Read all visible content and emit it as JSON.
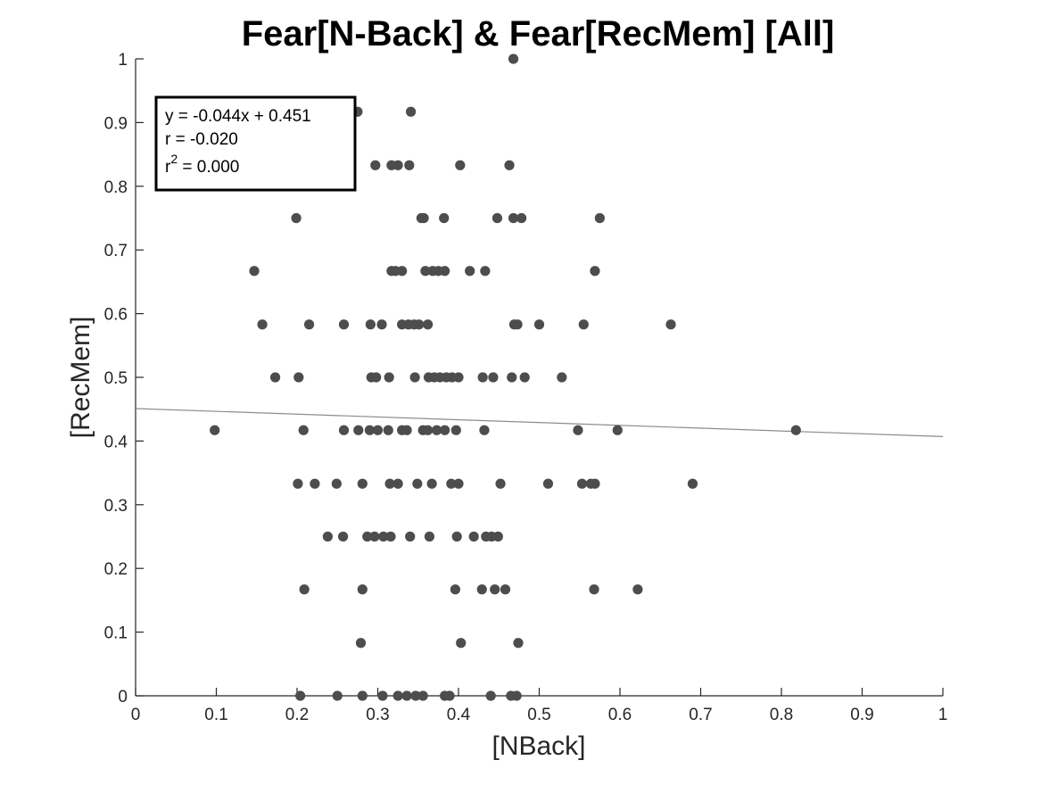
{
  "chart_data": {
    "type": "scatter",
    "title": "Fear[N-Back] & Fear[RecMem] [All]",
    "xlabel": "[NBack]",
    "ylabel": "[RecMem]",
    "xlim": [
      0,
      1
    ],
    "ylim": [
      0,
      1
    ],
    "x_ticks": [
      "0",
      "0.1",
      "0.2",
      "0.3",
      "0.4",
      "0.5",
      "0.6",
      "0.7",
      "0.8",
      "0.9",
      "1"
    ],
    "y_ticks": [
      "0",
      "0.1",
      "0.2",
      "0.3",
      "0.4",
      "0.5",
      "0.6",
      "0.7",
      "0.8",
      "0.9",
      "1"
    ],
    "grid": false,
    "stats_box": {
      "equation": "y = -0.044x + 0.451",
      "r_line": "r = -0.020",
      "r2_prefix": "r",
      "r2_superscript": "2",
      "r2_value": " = 0.000",
      "placement": "top-left"
    },
    "fit_line": {
      "slope": -0.044,
      "intercept": 0.451
    },
    "point_color": "#4d4d4d",
    "fit_color": "#8c8c8c",
    "points": [
      [
        0.468,
        1.0
      ],
      [
        0.242,
        0.917
      ],
      [
        0.275,
        0.917
      ],
      [
        0.341,
        0.917
      ],
      [
        0.297,
        0.833
      ],
      [
        0.317,
        0.833
      ],
      [
        0.325,
        0.833
      ],
      [
        0.339,
        0.833
      ],
      [
        0.402,
        0.833
      ],
      [
        0.463,
        0.833
      ],
      [
        0.199,
        0.75
      ],
      [
        0.354,
        0.75
      ],
      [
        0.357,
        0.75
      ],
      [
        0.382,
        0.75
      ],
      [
        0.448,
        0.75
      ],
      [
        0.468,
        0.75
      ],
      [
        0.478,
        0.75
      ],
      [
        0.575,
        0.75
      ],
      [
        0.147,
        0.667
      ],
      [
        0.317,
        0.667
      ],
      [
        0.322,
        0.667
      ],
      [
        0.33,
        0.667
      ],
      [
        0.359,
        0.667
      ],
      [
        0.368,
        0.667
      ],
      [
        0.375,
        0.667
      ],
      [
        0.383,
        0.667
      ],
      [
        0.414,
        0.667
      ],
      [
        0.433,
        0.667
      ],
      [
        0.569,
        0.667
      ],
      [
        0.157,
        0.583
      ],
      [
        0.215,
        0.583
      ],
      [
        0.258,
        0.583
      ],
      [
        0.291,
        0.583
      ],
      [
        0.305,
        0.583
      ],
      [
        0.33,
        0.583
      ],
      [
        0.338,
        0.583
      ],
      [
        0.345,
        0.583
      ],
      [
        0.351,
        0.583
      ],
      [
        0.362,
        0.583
      ],
      [
        0.469,
        0.583
      ],
      [
        0.473,
        0.583
      ],
      [
        0.5,
        0.583
      ],
      [
        0.555,
        0.583
      ],
      [
        0.663,
        0.583
      ],
      [
        0.173,
        0.5
      ],
      [
        0.202,
        0.5
      ],
      [
        0.292,
        0.5
      ],
      [
        0.298,
        0.5
      ],
      [
        0.314,
        0.5
      ],
      [
        0.346,
        0.5
      ],
      [
        0.363,
        0.5
      ],
      [
        0.37,
        0.5
      ],
      [
        0.377,
        0.5
      ],
      [
        0.385,
        0.5
      ],
      [
        0.392,
        0.5
      ],
      [
        0.4,
        0.5
      ],
      [
        0.43,
        0.5
      ],
      [
        0.443,
        0.5
      ],
      [
        0.466,
        0.5
      ],
      [
        0.482,
        0.5
      ],
      [
        0.528,
        0.5
      ],
      [
        0.098,
        0.417
      ],
      [
        0.208,
        0.417
      ],
      [
        0.258,
        0.417
      ],
      [
        0.276,
        0.417
      ],
      [
        0.29,
        0.417
      ],
      [
        0.3,
        0.417
      ],
      [
        0.313,
        0.417
      ],
      [
        0.33,
        0.417
      ],
      [
        0.336,
        0.417
      ],
      [
        0.356,
        0.417
      ],
      [
        0.362,
        0.417
      ],
      [
        0.373,
        0.417
      ],
      [
        0.383,
        0.417
      ],
      [
        0.397,
        0.417
      ],
      [
        0.432,
        0.417
      ],
      [
        0.548,
        0.417
      ],
      [
        0.597,
        0.417
      ],
      [
        0.818,
        0.417
      ],
      [
        0.201,
        0.333
      ],
      [
        0.222,
        0.333
      ],
      [
        0.249,
        0.333
      ],
      [
        0.281,
        0.333
      ],
      [
        0.315,
        0.333
      ],
      [
        0.325,
        0.333
      ],
      [
        0.349,
        0.333
      ],
      [
        0.367,
        0.333
      ],
      [
        0.391,
        0.333
      ],
      [
        0.4,
        0.333
      ],
      [
        0.452,
        0.333
      ],
      [
        0.511,
        0.333
      ],
      [
        0.553,
        0.333
      ],
      [
        0.564,
        0.333
      ],
      [
        0.569,
        0.333
      ],
      [
        0.69,
        0.333
      ],
      [
        0.238,
        0.25
      ],
      [
        0.257,
        0.25
      ],
      [
        0.287,
        0.25
      ],
      [
        0.296,
        0.25
      ],
      [
        0.307,
        0.25
      ],
      [
        0.316,
        0.25
      ],
      [
        0.34,
        0.25
      ],
      [
        0.364,
        0.25
      ],
      [
        0.398,
        0.25
      ],
      [
        0.419,
        0.25
      ],
      [
        0.434,
        0.25
      ],
      [
        0.441,
        0.25
      ],
      [
        0.449,
        0.25
      ],
      [
        0.209,
        0.167
      ],
      [
        0.281,
        0.167
      ],
      [
        0.396,
        0.167
      ],
      [
        0.429,
        0.167
      ],
      [
        0.445,
        0.167
      ],
      [
        0.458,
        0.167
      ],
      [
        0.568,
        0.167
      ],
      [
        0.622,
        0.167
      ],
      [
        0.279,
        0.083
      ],
      [
        0.403,
        0.083
      ],
      [
        0.474,
        0.083
      ],
      [
        0.204,
        0.0
      ],
      [
        0.25,
        0.0
      ],
      [
        0.281,
        0.0
      ],
      [
        0.306,
        0.0
      ],
      [
        0.325,
        0.0
      ],
      [
        0.336,
        0.0
      ],
      [
        0.347,
        0.0
      ],
      [
        0.356,
        0.0
      ],
      [
        0.383,
        0.0
      ],
      [
        0.389,
        0.0
      ],
      [
        0.44,
        0.0
      ],
      [
        0.465,
        0.0
      ],
      [
        0.472,
        0.0
      ]
    ]
  }
}
